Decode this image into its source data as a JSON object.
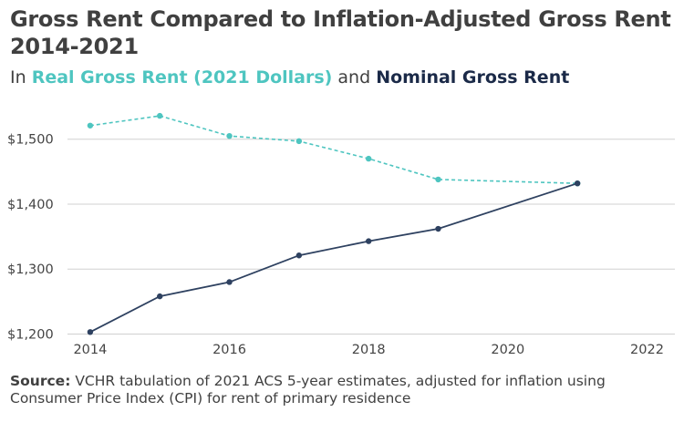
{
  "title_line1": "Gross Rent Compared to Inflation-Adjusted Gross Rent",
  "title_line2": "2014-2021",
  "subtitle": {
    "prefix": "In ",
    "real_label": "Real Gross Rent (2021 Dollars)",
    "joiner": " and ",
    "nominal_label": "Nominal Gross Rent"
  },
  "source": {
    "label": "Source:",
    "text": " VCHR tabulation of 2021 ACS 5-year estimates, adjusted for inflation using Consumer Price Index (CPI) for rent of primary residence"
  },
  "colors": {
    "real": "#4ec5c0",
    "nominal": "#2e4160",
    "grid": "#d0d0d0",
    "tick_text": "#444444"
  },
  "chart_data": {
    "type": "line",
    "xlim": [
      2013.7,
      2022.4
    ],
    "ylim": [
      1195,
      1560
    ],
    "x_ticks": [
      2014,
      2016,
      2018,
      2020,
      2022
    ],
    "x_tick_labels": [
      "2014",
      "2016",
      "2018",
      "2020",
      "2022"
    ],
    "y_ticks": [
      1200,
      1300,
      1400,
      1500
    ],
    "y_tick_labels": [
      "$1,200",
      "$1,300",
      "$1,400",
      "$1,500"
    ],
    "grid": "horizontal",
    "series": [
      {
        "name": "Real Gross Rent (2021 Dollars)",
        "style": "dashed",
        "x": [
          2014,
          2015,
          2016,
          2017,
          2018,
          2019,
          2021
        ],
        "values": [
          1521,
          1536,
          1505,
          1497,
          1470,
          1438,
          1432
        ]
      },
      {
        "name": "Nominal Gross Rent",
        "style": "solid",
        "x": [
          2014,
          2015,
          2016,
          2017,
          2018,
          2019,
          2021
        ],
        "values": [
          1203,
          1258,
          1280,
          1321,
          1343,
          1362,
          1432
        ]
      }
    ]
  }
}
